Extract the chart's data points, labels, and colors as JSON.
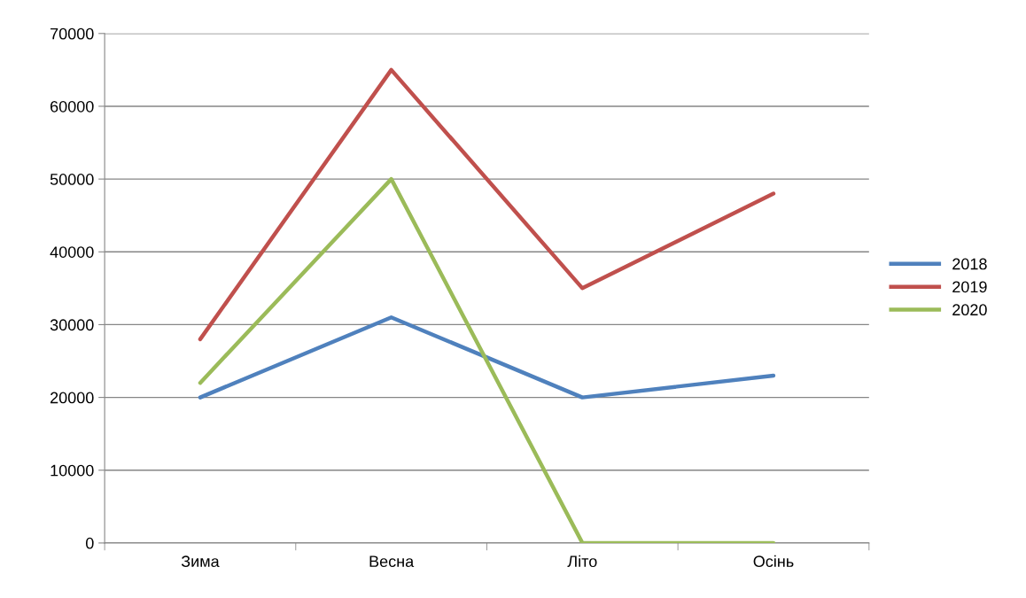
{
  "chart_data": {
    "type": "line",
    "categories": [
      "Зима",
      "Весна",
      "Літо",
      "Осінь"
    ],
    "series": [
      {
        "name": "2018",
        "color": "#4f81bd",
        "values": [
          20000,
          31000,
          20000,
          23000
        ]
      },
      {
        "name": "2019",
        "color": "#c0504d",
        "values": [
          28000,
          65000,
          35000,
          48000
        ]
      },
      {
        "name": "2020",
        "color": "#9bbb59",
        "values": [
          22000,
          50000,
          0,
          0
        ]
      }
    ],
    "ylim": [
      0,
      70000
    ],
    "yticks": [
      0,
      10000,
      20000,
      30000,
      40000,
      50000,
      60000,
      70000
    ],
    "grid": "y",
    "legend": "right",
    "marker": "none",
    "line_style": "solid"
  }
}
